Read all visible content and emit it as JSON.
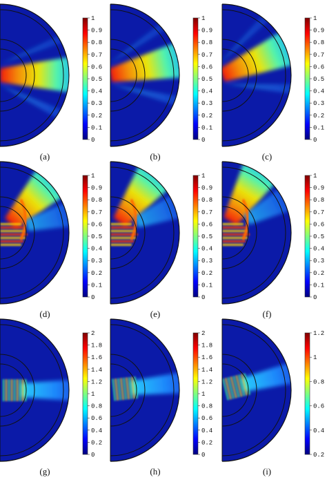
{
  "panels": [
    {
      "id": "a",
      "label": "(a)",
      "colorbar_ticks": [
        "1",
        "0.9",
        "0.8",
        "0.7",
        "0.6",
        "0.5",
        "0.4",
        "0.3",
        "0.2",
        "0.1",
        "0"
      ],
      "beam_angle_deg": 0,
      "pattern": "beam"
    },
    {
      "id": "b",
      "label": "(b)",
      "colorbar_ticks": [
        "1",
        "0.9",
        "0.8",
        "0.7",
        "0.6",
        "0.5",
        "0.4",
        "0.3",
        "0.2",
        "0.1",
        "0"
      ],
      "beam_angle_deg": 12,
      "pattern": "beam"
    },
    {
      "id": "c",
      "label": "(c)",
      "colorbar_ticks": [
        "1",
        "0.9",
        "0.8",
        "0.7",
        "0.6",
        "0.5",
        "0.4",
        "0.3",
        "0.2",
        "0.1",
        "0"
      ],
      "beam_angle_deg": 22,
      "pattern": "beam"
    },
    {
      "id": "d",
      "label": "(d)",
      "colorbar_ticks": [
        "1",
        "0.9",
        "0.8",
        "0.7",
        "0.6",
        "0.5",
        "0.4",
        "0.3",
        "0.2",
        "0.1",
        "0"
      ],
      "beam_angle_deg": 45,
      "pattern": "scatter"
    },
    {
      "id": "e",
      "label": "(e)",
      "colorbar_ticks": [
        "1",
        "0.9",
        "0.8",
        "0.7",
        "0.6",
        "0.5",
        "0.4",
        "0.3",
        "0.2",
        "0.1",
        "0"
      ],
      "beam_angle_deg": 52,
      "pattern": "scatter"
    },
    {
      "id": "f",
      "label": "(f)",
      "colorbar_ticks": [
        "1",
        "0.9",
        "0.8",
        "0.7",
        "0.6",
        "0.5",
        "0.4",
        "0.3",
        "0.2",
        "0.1",
        "0"
      ],
      "beam_angle_deg": 58,
      "pattern": "scatter"
    },
    {
      "id": "g",
      "label": "(g)",
      "colorbar_ticks": [
        "2",
        "1.8",
        "1.6",
        "1.4",
        "1.2",
        "1",
        "0.8",
        "0.6",
        "0.4",
        "0.2",
        "0"
      ],
      "beam_angle_deg": 0,
      "pattern": "focus"
    },
    {
      "id": "h",
      "label": "(h)",
      "colorbar_ticks": [
        "2",
        "1.8",
        "1.6",
        "1.4",
        "1.2",
        "1",
        "0.8",
        "0.6",
        "0.4",
        "0.2",
        "0"
      ],
      "beam_angle_deg": 6,
      "pattern": "focus"
    },
    {
      "id": "i",
      "label": "(i)",
      "colorbar_ticks": [
        "1.2",
        "1",
        "0.8",
        "0.6",
        "0.4",
        "0.2"
      ],
      "beam_angle_deg": 14,
      "pattern": "focus"
    }
  ],
  "colors": {
    "background_field": "#0b1aa8",
    "outline": "#111111",
    "jet": [
      "#00007f",
      "#0000ff",
      "#007fff",
      "#00ffff",
      "#7fff7f",
      "#ffff00",
      "#ff7f00",
      "#ff0000",
      "#7f0000"
    ]
  }
}
